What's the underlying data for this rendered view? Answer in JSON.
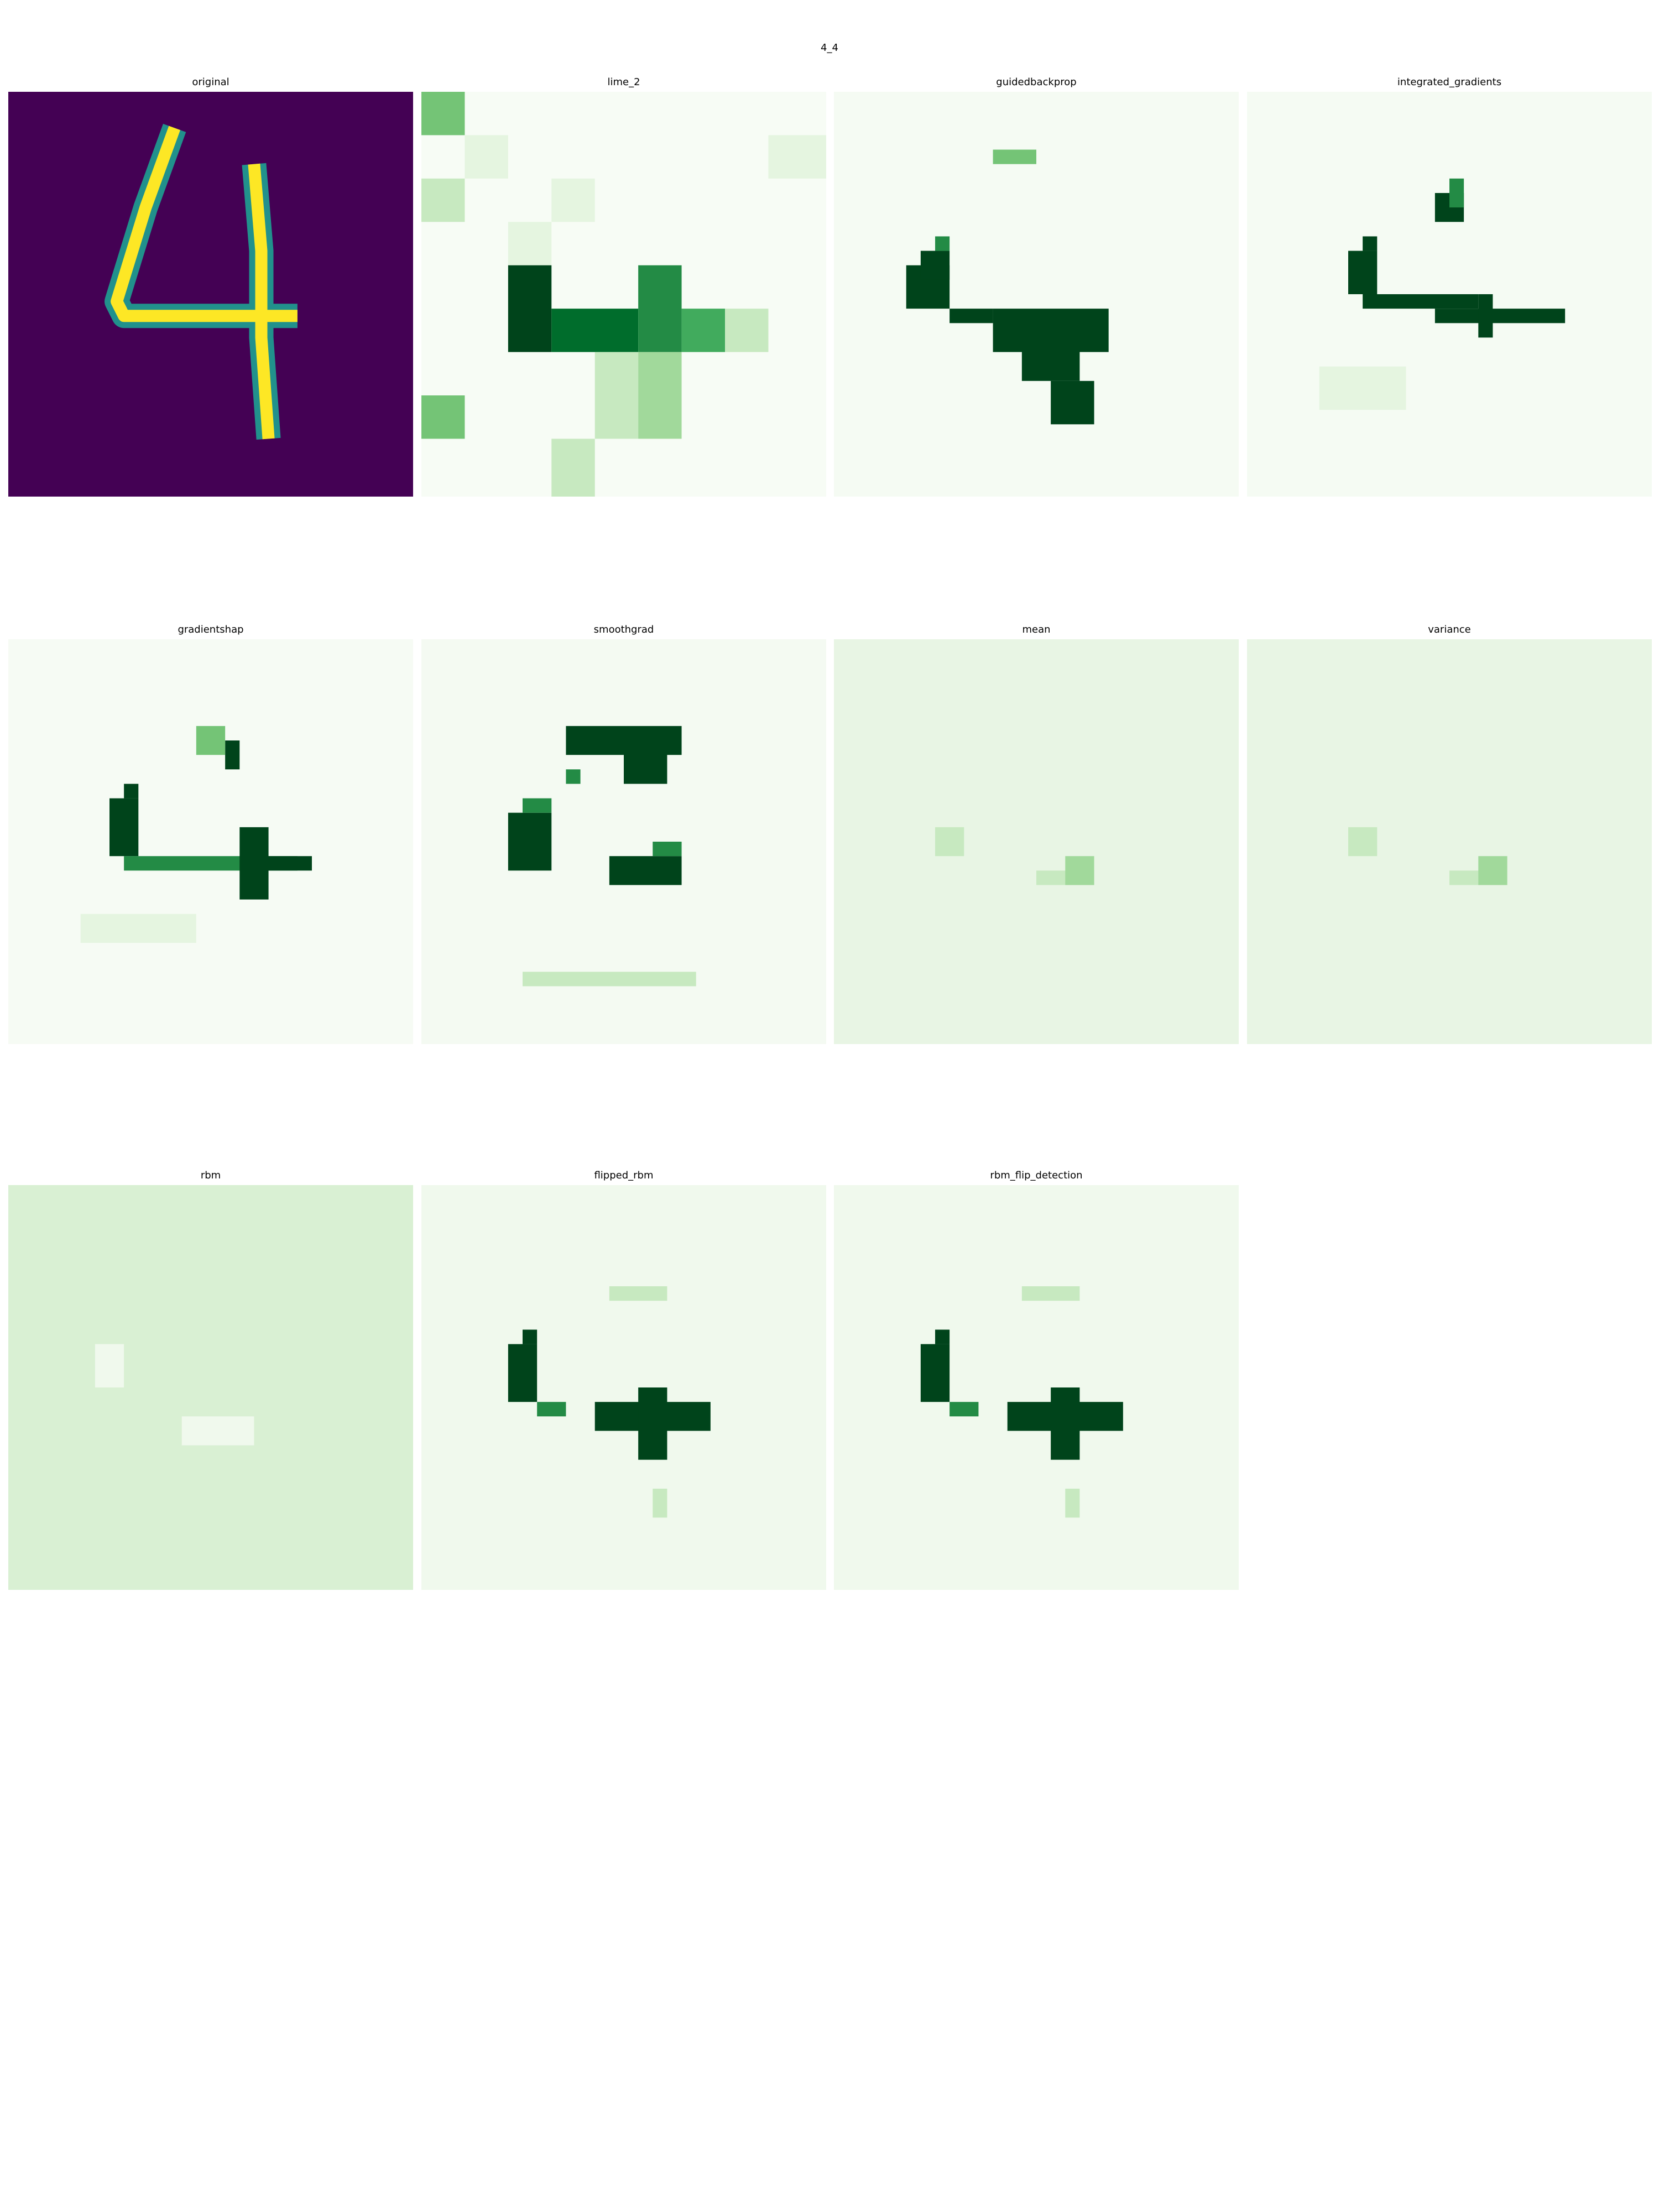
{
  "figure": {
    "title": "4_4",
    "panels": [
      {
        "title": "original"
      },
      {
        "title": "lime_2"
      },
      {
        "title": "guidedbackprop"
      },
      {
        "title": "integrated_gradients"
      },
      {
        "title": "gradientshap"
      },
      {
        "title": "smoothgrad"
      },
      {
        "title": "mean"
      },
      {
        "title": "variance"
      },
      {
        "title": "rbm"
      },
      {
        "title": "flipped_rbm"
      },
      {
        "title": "rbm_flip_detection"
      }
    ]
  }
}
